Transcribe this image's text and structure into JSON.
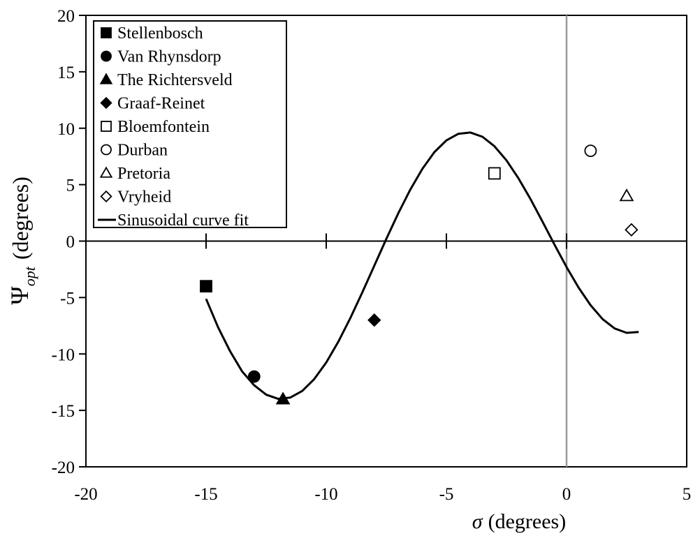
{
  "chart_data": {
    "type": "scatter",
    "xlabel": {
      "symbol": "σ",
      "unit": "(degrees)"
    },
    "ylabel": {
      "symbol": "Ψ",
      "subscript": "opt",
      "unit": "(degrees)"
    },
    "xlim": [
      -20,
      5
    ],
    "ylim": [
      -20,
      20
    ],
    "x_ticks": [
      -20,
      -15,
      -10,
      -5,
      0,
      5
    ],
    "y_ticks": [
      -20,
      -15,
      -10,
      -5,
      0,
      5,
      10,
      15,
      20
    ],
    "grid": false,
    "legend_position": "top-left",
    "series": [
      {
        "name": "Stellenbosch",
        "marker": "square",
        "filled": true,
        "x": [
          -15
        ],
        "y": [
          -4
        ]
      },
      {
        "name": "Van Rhynsdorp",
        "marker": "circle",
        "filled": true,
        "x": [
          -13
        ],
        "y": [
          -12
        ]
      },
      {
        "name": "The Richtersveld",
        "marker": "triangle",
        "filled": true,
        "x": [
          -11.8
        ],
        "y": [
          -14
        ]
      },
      {
        "name": "Graaf-Reinet",
        "marker": "diamond",
        "filled": true,
        "x": [
          -8
        ],
        "y": [
          -7
        ]
      },
      {
        "name": "Bloemfontein",
        "marker": "square",
        "filled": false,
        "x": [
          -3
        ],
        "y": [
          6
        ]
      },
      {
        "name": "Durban",
        "marker": "circle",
        "filled": false,
        "x": [
          1
        ],
        "y": [
          8
        ]
      },
      {
        "name": "Pretoria",
        "marker": "triangle",
        "filled": false,
        "x": [
          2.5
        ],
        "y": [
          4
        ]
      },
      {
        "name": "Vryheid",
        "marker": "diamond",
        "filled": false,
        "x": [
          2.7
        ],
        "y": [
          1
        ]
      }
    ],
    "fit": {
      "name": "Sinusoidal curve fit",
      "type": "line",
      "x": [
        -15,
        -14.5,
        -14,
        -13.5,
        -13,
        -12.5,
        -12,
        -11.5,
        -11,
        -10.5,
        -10,
        -9.5,
        -9,
        -8.5,
        -8,
        -7.5,
        -7,
        -6.5,
        -6,
        -5.5,
        -5,
        -4.5,
        -4,
        -3.5,
        -3,
        -2.5,
        -2,
        -1.5,
        -1,
        -0.5,
        0,
        0.5,
        1,
        1.5,
        2,
        2.5,
        3
      ],
      "y": [
        -5.12,
        -7.64,
        -9.76,
        -11.55,
        -12.77,
        -13.61,
        -13.98,
        -13.87,
        -13.28,
        -12.23,
        -10.76,
        -8.93,
        -6.83,
        -4.55,
        -2.18,
        0.19,
        2.47,
        4.57,
        6.4,
        7.88,
        8.92,
        9.51,
        9.62,
        9.24,
        8.4,
        7.15,
        5.56,
        3.72,
        1.72,
        -0.32,
        -2.3,
        -4.12,
        -5.68,
        -6.91,
        -7.74,
        -8.13,
        -8.05
      ]
    }
  }
}
